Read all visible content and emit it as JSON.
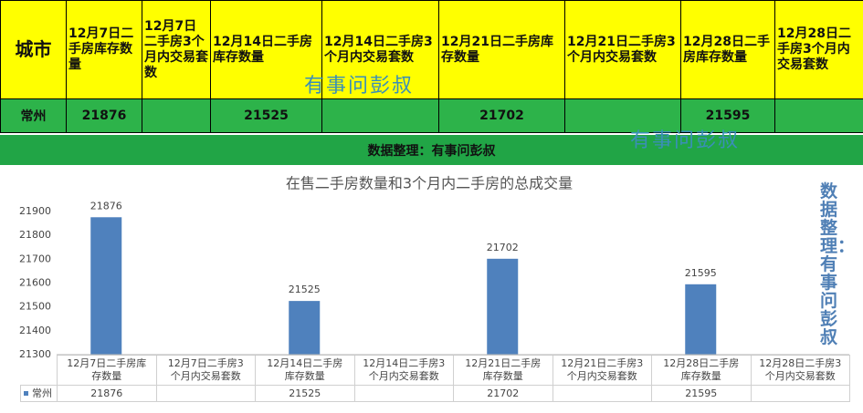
{
  "table": {
    "header": [
      "城市",
      "12月7日二手房库存数量",
      "12月7日二手房3个月内交易套数",
      "12月14日二手房库存数量",
      "12月14日二手房3个月内交易套数",
      "12月21日二手房库存数量",
      "12月21日二手房3个月内交易套数",
      "12月28日二手房库存数量",
      "12月28日二手房3个月内交易套数"
    ],
    "rows": [
      [
        "常州",
        21876,
        null,
        21525,
        null,
        21702,
        null,
        21595,
        null
      ]
    ]
  },
  "banner": "数据整理：有事问彭叔",
  "watermarks": [
    "有事问彭叔",
    "有事问彭叔"
  ],
  "vertical_note": "数据整理：有事问彭叔",
  "chart_data": {
    "type": "bar",
    "title": "在售二手房数量和3个月内二手房的总成交量",
    "categories": [
      "12月7日二手房库存数量",
      "12月7日二手房3个月内交易套数",
      "12月14日二手房库存数量",
      "12月14日二手房3个月内交易套数",
      "12月21日二手房库存数量",
      "12月21日二手房3个月内交易套数",
      "12月28日二手房库存数量",
      "12月28日二手房3个月内交易套数"
    ],
    "series": [
      {
        "name": "常州",
        "color": "#4f81bd",
        "values": [
          21876,
          null,
          21525,
          null,
          21702,
          null,
          21595,
          null
        ]
      }
    ],
    "ylim": [
      21300,
      21900
    ],
    "yticks": [
      21300,
      21400,
      21500,
      21600,
      21700,
      21800,
      21900
    ],
    "grid": false
  }
}
